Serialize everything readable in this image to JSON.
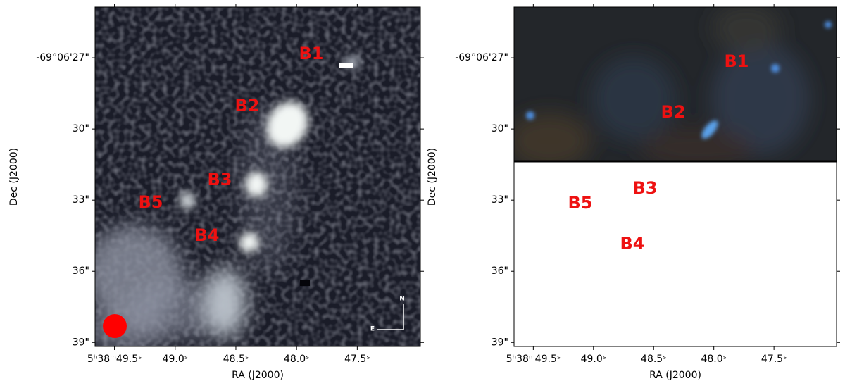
{
  "chart_data": [
    {
      "type": "image",
      "xlabel": "RA (J2000)",
      "ylabel": "Dec (J2000)",
      "xlim": [
        49.66,
        46.98
      ],
      "ylim": [
        24.86,
        39.17
      ],
      "y_inverted": true,
      "xticks": [
        {
          "value": 49.5,
          "label": "5ʰ38ᵐ49.5ˢ"
        },
        {
          "value": 49.0,
          "label": "49.0ˢ"
        },
        {
          "value": 48.5,
          "label": "48.5ˢ"
        },
        {
          "value": 48.0,
          "label": "48.0ˢ"
        },
        {
          "value": 47.5,
          "label": "47.5ˢ"
        }
      ],
      "yticks": [
        {
          "value": 27,
          "label": "-69°06'27\""
        },
        {
          "value": 30,
          "label": "30\""
        },
        {
          "value": 33,
          "label": "33\""
        },
        {
          "value": 36,
          "label": "36\""
        },
        {
          "value": 39,
          "label": "39\""
        }
      ],
      "annotations": [
        "B1",
        "B2",
        "B3",
        "B4",
        "B5"
      ],
      "compass": [
        "N",
        "E"
      ]
    },
    {
      "type": "image",
      "xlabel": "RA (J2000)",
      "ylabel": "Dec (J2000)",
      "xlim": [
        49.66,
        46.98
      ],
      "ylim": [
        24.86,
        39.17
      ],
      "y_inverted": true,
      "xticks": [
        {
          "value": 49.5,
          "label": "5ʰ38ᵐ49.5ˢ"
        },
        {
          "value": 49.0,
          "label": "49.0ˢ"
        },
        {
          "value": 48.5,
          "label": "48.5ˢ"
        },
        {
          "value": 48.0,
          "label": "48.0ˢ"
        },
        {
          "value": 47.5,
          "label": "47.5ˢ"
        }
      ],
      "yticks": [
        {
          "value": 27,
          "label": "-69°06'27\""
        },
        {
          "value": 30,
          "label": "30\""
        },
        {
          "value": 33,
          "label": "33\""
        },
        {
          "value": 36,
          "label": "36\""
        },
        {
          "value": 39,
          "label": "39\""
        }
      ],
      "annotations": [
        "B1",
        "B2",
        "B3",
        "B4",
        "B5"
      ]
    }
  ]
}
